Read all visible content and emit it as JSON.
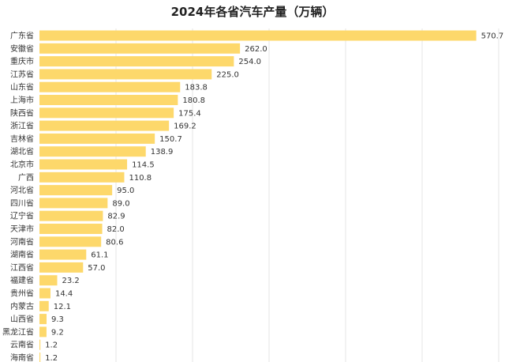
{
  "chart_data": {
    "type": "bar",
    "orientation": "horizontal",
    "title": "2024年各省汽车产量（万辆）",
    "xlabel": "",
    "ylabel": "",
    "xlim": [
      0,
      600
    ],
    "grid": true,
    "categories": [
      "广东省",
      "安徽省",
      "重庆市",
      "江苏省",
      "山东省",
      "上海市",
      "陕西省",
      "浙江省",
      "吉林省",
      "湖北省",
      "北京市",
      "广西",
      "河北省",
      "四川省",
      "辽宁省",
      "天津市",
      "河南省",
      "湖南省",
      "江西省",
      "福建省",
      "贵州省",
      "内蒙古",
      "山西省",
      "黑龙江省",
      "云南省",
      "海南省"
    ],
    "values": [
      570.7,
      262.0,
      254.0,
      225.0,
      183.8,
      180.8,
      175.4,
      169.2,
      150.7,
      138.9,
      114.5,
      110.8,
      95.0,
      89.0,
      82.9,
      82.0,
      80.6,
      61.1,
      57.0,
      23.2,
      14.4,
      12.1,
      9.3,
      9.2,
      1.2,
      1.2
    ],
    "value_labels": [
      "570.7",
      "262.0",
      "254.0",
      "225.0",
      "183.8",
      "180.8",
      "175.4",
      "169.2",
      "150.7",
      "138.9",
      "114.5",
      "110.8",
      "95.0",
      "89.0",
      "82.9",
      "82.0",
      "80.6",
      "61.1",
      "57.0",
      "23.2",
      "14.4",
      "12.1",
      "9.3",
      "9.2",
      "1.2",
      "1.2"
    ],
    "colors": {
      "bar": "#FDD86B",
      "grid": "#E6E6E6",
      "text": "#333333"
    }
  }
}
